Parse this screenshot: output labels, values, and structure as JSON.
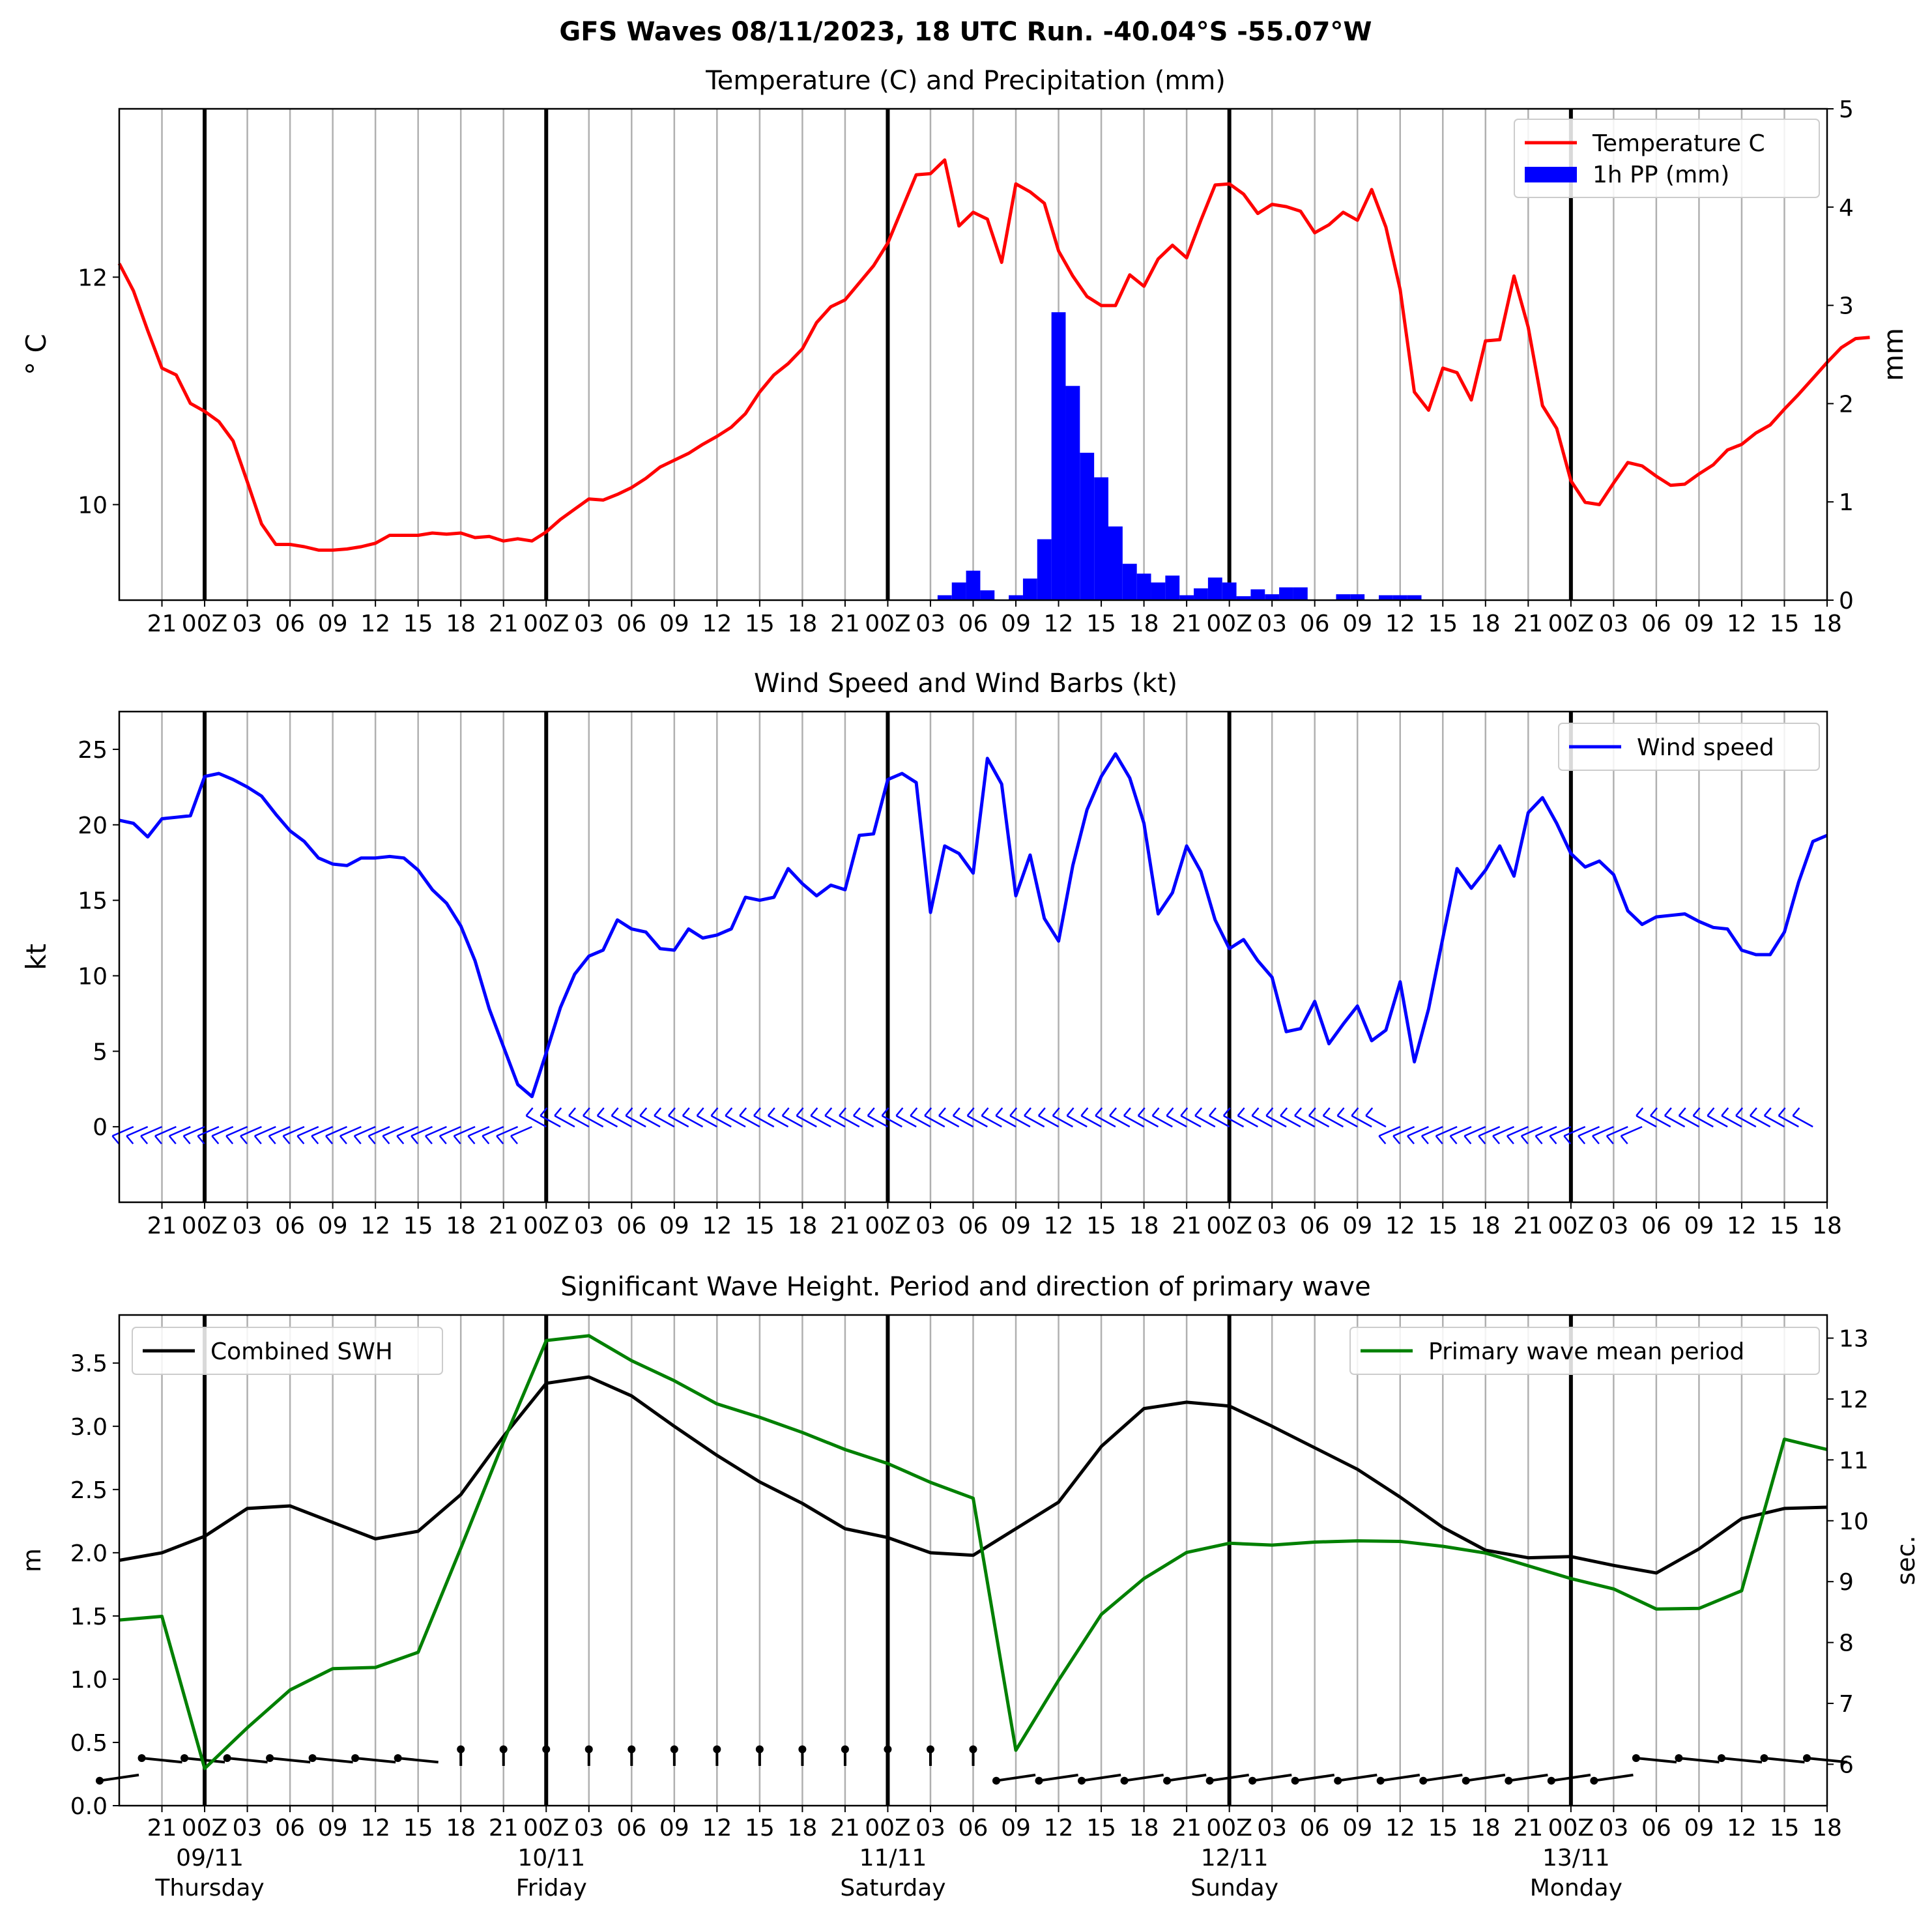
{
  "suptitle": "GFS Waves 08/11/2023, 18 UTC Run. -40.04°S -55.07°W",
  "colors": {
    "temperature": "#ff0000",
    "precip": "#0000ff",
    "wind": "#0000ff",
    "swh": "#000000",
    "period": "#008000",
    "grid": "#b0b0b0"
  },
  "xaxis": {
    "start": "2023-11-08T18:00Z",
    "end": "2023-11-13T18:00Z",
    "step_hours": 3,
    "tick_labels": [
      "21",
      "00Z",
      "03",
      "06",
      "09",
      "12",
      "15",
      "18",
      "21",
      "00Z",
      "03",
      "06",
      "09",
      "12",
      "15",
      "18",
      "21",
      "00Z",
      "03",
      "06",
      "09",
      "12",
      "15",
      "18",
      "21",
      "00Z",
      "03",
      "06",
      "09",
      "12",
      "15",
      "18",
      "21",
      "00Z",
      "03",
      "06",
      "09",
      "12",
      "15",
      "18"
    ],
    "day_labels": [
      {
        "date": "09/11",
        "day": "Thursday"
      },
      {
        "date": "10/11",
        "day": "Friday"
      },
      {
        "date": "11/11",
        "day": "Saturday"
      },
      {
        "date": "12/11",
        "day": "Sunday"
      },
      {
        "date": "13/11",
        "day": "Monday"
      }
    ]
  },
  "chart_data": [
    {
      "type": "line",
      "title": "Temperature (C) and Precipitation (mm)",
      "ylabel": "° C",
      "ylabel_right": "mm",
      "ylim": [
        9.16,
        13.48
      ],
      "yticks": [
        10,
        12
      ],
      "ylim_right": [
        0,
        5
      ],
      "yticks_right": [
        0,
        1,
        2,
        3,
        4,
        5
      ],
      "legend": [
        "Temperature C",
        "1h PP (mm)"
      ],
      "legend_position": "upper right",
      "series": [
        {
          "name": "Temperature C",
          "x_hours_step": 1,
          "values": [
            12.12,
            11.88,
            11.53,
            11.2,
            11.14,
            10.89,
            10.82,
            10.73,
            10.56,
            10.2,
            9.83,
            9.65,
            9.65,
            9.63,
            9.6,
            9.6,
            9.61,
            9.63,
            9.66,
            9.73,
            9.73,
            9.73,
            9.75,
            9.74,
            9.75,
            9.71,
            9.72,
            9.68,
            9.7,
            9.68,
            9.76,
            9.87,
            9.96,
            10.05,
            10.04,
            10.09,
            10.15,
            10.23,
            10.33,
            10.39,
            10.45,
            10.53,
            10.6,
            10.68,
            10.8,
            10.99,
            11.14,
            11.24,
            11.37,
            11.6,
            11.74,
            11.8,
            11.95,
            12.1,
            12.3,
            12.6,
            12.9,
            12.91,
            13.03,
            12.45,
            12.57,
            12.51,
            12.13,
            12.82,
            12.75,
            12.65,
            12.23,
            12.01,
            11.83,
            11.75,
            11.75,
            12.02,
            11.92,
            12.16,
            12.28,
            12.17,
            12.5,
            12.81,
            12.82,
            12.73,
            12.56,
            12.64,
            12.62,
            12.58,
            12.39,
            12.46,
            12.57,
            12.5,
            12.77,
            12.44,
            11.89,
            10.99,
            10.83,
            11.2,
            11.16,
            10.92,
            11.44,
            11.45,
            12.01,
            11.56,
            10.87,
            10.67,
            10.21,
            10.02,
            10.0,
            10.19,
            10.37,
            10.34,
            10.25,
            10.17,
            10.18,
            10.27,
            10.35,
            10.48,
            10.53,
            10.63,
            10.7,
            10.84,
            10.97,
            11.11,
            11.25,
            11.38,
            11.46,
            11.47
          ]
        },
        {
          "name": "1h PP (mm)",
          "type": "bar",
          "x_hours": [
            58,
            59,
            60,
            61,
            63,
            64,
            65,
            66,
            67,
            68,
            69,
            70,
            71,
            72,
            73,
            74,
            75,
            76,
            77,
            78,
            79,
            80,
            81,
            82,
            83,
            86,
            87,
            89,
            90,
            91
          ],
          "values": [
            0.05,
            0.18,
            0.3,
            0.1,
            0.05,
            0.22,
            0.62,
            2.93,
            2.18,
            1.5,
            1.25,
            0.75,
            0.37,
            0.27,
            0.18,
            0.25,
            0.05,
            0.12,
            0.23,
            0.18,
            0.04,
            0.11,
            0.06,
            0.13,
            0.13,
            0.06,
            0.06,
            0.05,
            0.05,
            0.05
          ]
        }
      ]
    },
    {
      "type": "line",
      "title": "Wind Speed and Wind Barbs (kt)",
      "ylabel": "kt",
      "ylim": [
        -5,
        27.5
      ],
      "yticks": [
        0,
        5,
        10,
        15,
        20,
        25
      ],
      "legend": [
        "Wind speed"
      ],
      "legend_position": "upper right",
      "series": [
        {
          "name": "Wind speed",
          "x_hours_step": 1,
          "values": [
            20.3,
            20.1,
            19.2,
            20.4,
            20.5,
            20.6,
            23.2,
            23.4,
            23.0,
            22.5,
            21.9,
            20.7,
            19.6,
            18.9,
            17.8,
            17.4,
            17.3,
            17.8,
            17.8,
            17.9,
            17.8,
            17.0,
            15.7,
            14.8,
            13.3,
            11.0,
            7.8,
            5.3,
            2.8,
            2.0,
            4.9,
            7.9,
            10.1,
            11.3,
            11.7,
            13.7,
            13.1,
            12.9,
            11.8,
            11.7,
            13.1,
            12.5,
            12.7,
            13.1,
            15.2,
            15.0,
            15.2,
            17.1,
            16.1,
            15.3,
            16.0,
            15.7,
            19.3,
            19.4,
            23.0,
            23.4,
            22.8,
            14.2,
            18.6,
            18.1,
            16.8,
            24.4,
            22.7,
            15.3,
            18.0,
            13.8,
            12.3,
            17.3,
            21.0,
            23.2,
            24.7,
            23.1,
            20.1,
            14.1,
            15.5,
            18.6,
            16.9,
            13.7,
            11.8,
            12.4,
            11.0,
            9.9,
            6.3,
            6.5,
            8.3,
            5.5,
            6.8,
            8.0,
            5.7,
            6.4,
            9.6,
            4.3,
            7.8,
            12.5,
            17.1,
            15.8,
            17.0,
            18.6,
            16.6,
            20.8,
            21.8,
            20.1,
            18.1,
            17.2,
            17.6,
            16.7,
            14.3,
            13.4,
            13.9,
            14.0,
            14.1,
            13.6,
            13.2,
            13.1,
            11.7,
            11.4,
            11.4,
            12.9,
            16.2,
            18.9,
            19.3
          ]
        }
      ]
    },
    {
      "type": "line",
      "title": "Significant Wave Height. Period and direction of primary wave",
      "ylabel": "m",
      "ylabel_right": "sec.",
      "ylim": [
        0,
        3.88
      ],
      "yticks": [
        0.0,
        0.5,
        1.0,
        1.5,
        2.0,
        2.5,
        3.0,
        3.5
      ],
      "ylim_right": [
        5.32,
        13.38
      ],
      "yticks_right": [
        6,
        7,
        8,
        9,
        10,
        11,
        12,
        13
      ],
      "legend": [
        "Combined SWH",
        "Primary wave mean period"
      ],
      "series": [
        {
          "name": "Combined SWH",
          "x_hours_step": 3,
          "values": [
            1.94,
            2.0,
            2.13,
            2.35,
            2.37,
            2.24,
            2.11,
            2.17,
            2.46,
            2.92,
            3.34,
            3.39,
            3.24,
            3.0,
            2.77,
            2.56,
            2.39,
            2.19,
            2.12,
            2.0,
            1.98,
            2.19,
            2.4,
            2.84,
            3.14,
            3.19,
            3.16,
            3.0,
            2.83,
            2.66,
            2.44,
            2.2,
            2.02,
            1.96,
            1.97,
            1.9,
            1.84,
            2.03,
            2.27,
            2.35,
            2.36
          ]
        },
        {
          "name": "Primary wave mean period",
          "x_hours_step": 3,
          "values": [
            8.37,
            8.43,
            5.93,
            6.6,
            7.22,
            7.57,
            7.59,
            7.84,
            9.55,
            11.3,
            12.96,
            13.04,
            12.63,
            12.3,
            11.92,
            11.7,
            11.45,
            11.17,
            10.94,
            10.63,
            10.37,
            6.23,
            7.38,
            8.46,
            9.05,
            9.48,
            9.63,
            9.6,
            9.65,
            9.67,
            9.66,
            9.58,
            9.47,
            9.26,
            9.05,
            8.88,
            8.55,
            8.56,
            8.85,
            11.34,
            11.17
          ]
        }
      ]
    }
  ]
}
